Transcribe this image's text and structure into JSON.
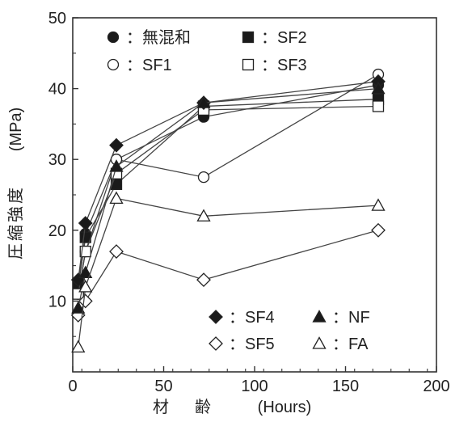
{
  "chart_data": {
    "type": "line",
    "title": "",
    "xlabel_jp": "材　齢",
    "xlabel_unit": "(Hours)",
    "ylabel_jp": "圧縮強度",
    "ylabel_unit": "(MPa)",
    "xlim": [
      0,
      200
    ],
    "ylim": [
      0,
      50
    ],
    "xticks": [
      "0",
      "50",
      "100",
      "150",
      "200"
    ],
    "yticks": [
      "10",
      "20",
      "30",
      "40",
      "50"
    ],
    "grid": false,
    "legend_upper": [
      {
        "series": 0,
        "label": "：無混和"
      },
      {
        "series": 2,
        "label": "：SF2"
      },
      {
        "series": 1,
        "label": "：SF1"
      },
      {
        "series": 3,
        "label": "：SF3"
      }
    ],
    "legend_lower": [
      {
        "series": 4,
        "label": "：SF4"
      },
      {
        "series": 6,
        "label": "：NF"
      },
      {
        "series": 5,
        "label": "：SF5"
      },
      {
        "series": 7,
        "label": "：FA"
      }
    ],
    "series": [
      {
        "name": "無混和",
        "marker": "circle-filled",
        "x": [
          3,
          7,
          24,
          72,
          168
        ],
        "y": [
          12.5,
          19.5,
          30.0,
          36.0,
          40.5
        ]
      },
      {
        "name": "SF1",
        "marker": "circle-open",
        "x": [
          3,
          7,
          24,
          72,
          168
        ],
        "y": [
          11.0,
          17.0,
          30.0,
          27.5,
          42.0
        ]
      },
      {
        "name": "SF2",
        "marker": "square-filled",
        "x": [
          3,
          7,
          24,
          72,
          168
        ],
        "y": [
          12.0,
          19.0,
          26.5,
          37.5,
          38.5
        ]
      },
      {
        "name": "SF3",
        "marker": "square-open",
        "x": [
          3,
          7,
          24,
          72,
          168
        ],
        "y": [
          11.0,
          17.0,
          28.0,
          37.0,
          37.5
        ]
      },
      {
        "name": "SF4",
        "marker": "diamond-filled",
        "x": [
          3,
          7,
          24,
          72,
          168
        ],
        "y": [
          13.0,
          21.0,
          32.0,
          38.0,
          41.0
        ]
      },
      {
        "name": "SF5",
        "marker": "diamond-open",
        "x": [
          3,
          7,
          24,
          72,
          168
        ],
        "y": [
          8.0,
          10.0,
          17.0,
          13.0,
          20.0
        ]
      },
      {
        "name": "NF",
        "marker": "triangle-filled",
        "x": [
          3,
          7,
          24,
          72,
          168
        ],
        "y": [
          9.0,
          14.0,
          29.0,
          38.0,
          40.0
        ]
      },
      {
        "name": "FA",
        "marker": "triangle-open",
        "x": [
          3,
          7,
          24,
          72,
          168
        ],
        "y": [
          3.5,
          12.0,
          24.5,
          22.0,
          23.5
        ]
      }
    ]
  }
}
